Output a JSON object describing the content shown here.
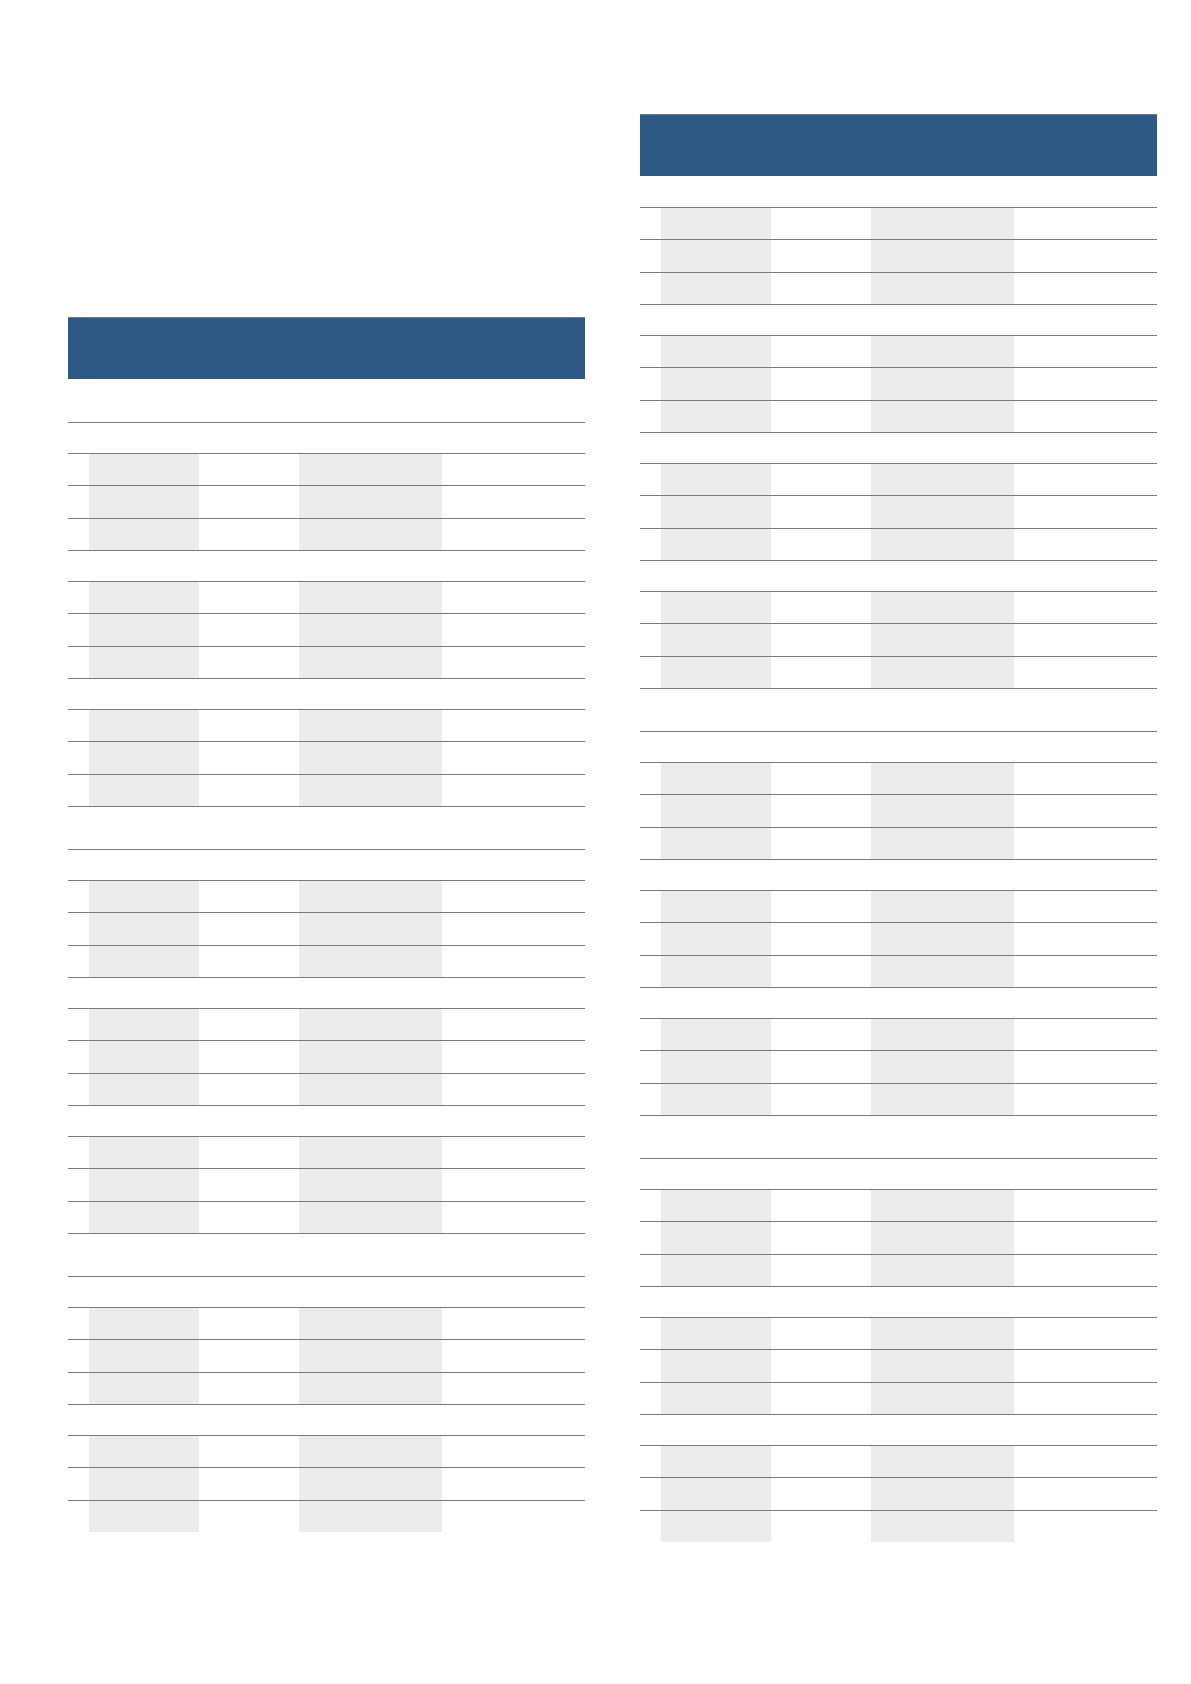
{
  "colors": {
    "header_band": "#2e5984",
    "shaded_cell": "#ececec",
    "rule": "#7a7a7a"
  },
  "tables": [
    {
      "id": "left",
      "texts": []
    },
    {
      "id": "right",
      "texts": []
    }
  ]
}
